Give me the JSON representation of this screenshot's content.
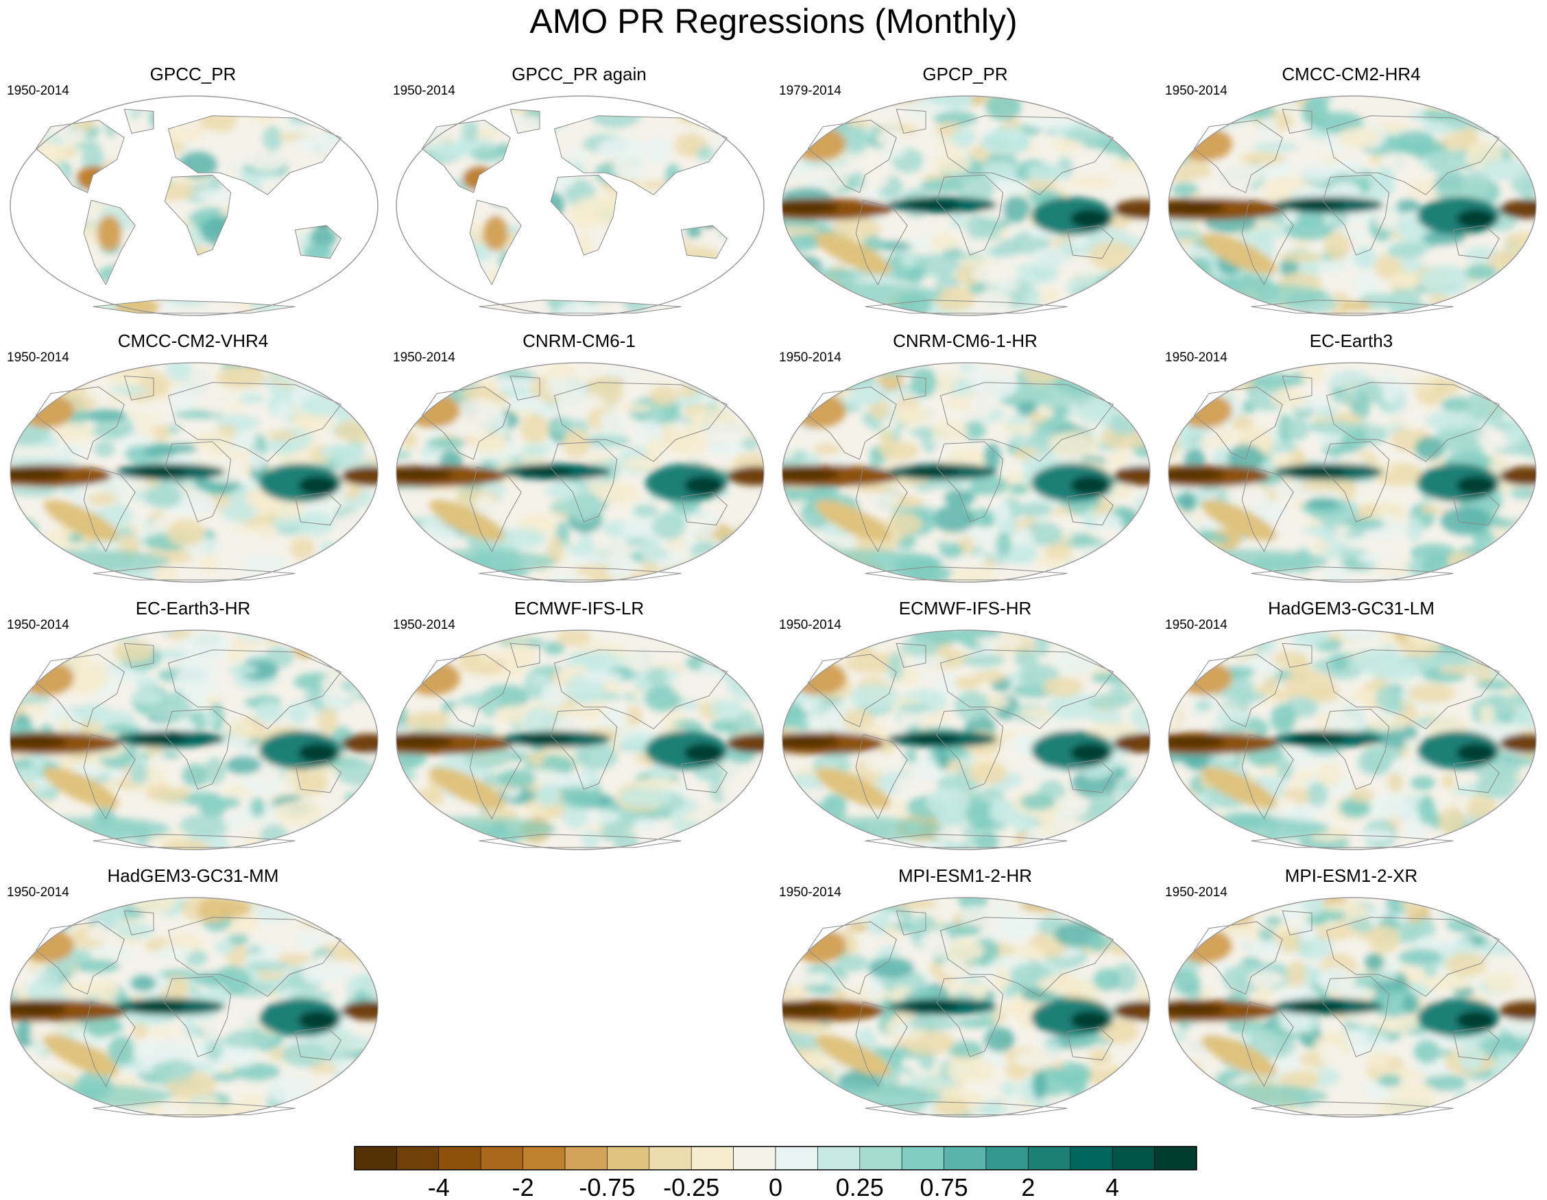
{
  "title": "AMO PR Regressions (Monthly)",
  "panels": [
    {
      "name": "GPCC_PR",
      "period": "1950-2014",
      "kind": "land"
    },
    {
      "name": "GPCC_PR again",
      "period": "1950-2014",
      "kind": "land"
    },
    {
      "name": "GPCP_PR",
      "period": "1979-2014",
      "kind": "global"
    },
    {
      "name": "CMCC-CM2-HR4",
      "period": "1950-2014",
      "kind": "global"
    },
    {
      "name": "CMCC-CM2-VHR4",
      "period": "1950-2014",
      "kind": "global"
    },
    {
      "name": "CNRM-CM6-1",
      "period": "1950-2014",
      "kind": "global"
    },
    {
      "name": "CNRM-CM6-1-HR",
      "period": "1950-2014",
      "kind": "global"
    },
    {
      "name": "EC-Earth3",
      "period": "1950-2014",
      "kind": "global"
    },
    {
      "name": "EC-Earth3-HR",
      "period": "1950-2014",
      "kind": "global"
    },
    {
      "name": "ECMWF-IFS-LR",
      "period": "1950-2014",
      "kind": "global"
    },
    {
      "name": "ECMWF-IFS-HR",
      "period": "1950-2014",
      "kind": "global"
    },
    {
      "name": "HadGEM3-GC31-LM",
      "period": "1950-2014",
      "kind": "global"
    },
    {
      "name": "HadGEM3-GC31-MM",
      "period": "1950-2014",
      "kind": "global"
    },
    {
      "name": "MPI-ESM1-2-HR",
      "period": "1950-2014",
      "kind": "global"
    },
    {
      "name": "MPI-ESM1-2-XR",
      "period": "1950-2014",
      "kind": "global"
    }
  ],
  "colorbar": {
    "tick_labels": [
      "-4",
      "-2",
      "-0.75",
      "-0.25",
      "0",
      "0.25",
      "0.75",
      "2",
      "4"
    ],
    "colors": [
      "#543005",
      "#6f4109",
      "#8c510a",
      "#a9681c",
      "#bf812d",
      "#d3a35a",
      "#dfc27d",
      "#ecdcae",
      "#f6ecd0",
      "#f5f2ea",
      "#e9f3f1",
      "#c7eae5",
      "#a6dbd1",
      "#80cdc1",
      "#5ab4ac",
      "#35978f",
      "#1d8077",
      "#01665e",
      "#015247",
      "#003c30"
    ]
  },
  "colors": {
    "dry": "#8c510a",
    "wet": "#01665e",
    "neutral": "#f5f2ea"
  }
}
